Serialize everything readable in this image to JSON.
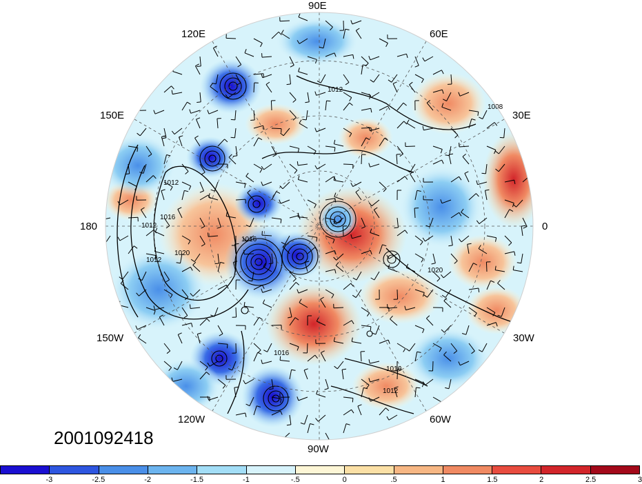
{
  "longitude_labels": [
    "90E",
    "60E",
    "30E",
    "0",
    "30W",
    "60W",
    "90W",
    "120W",
    "150W",
    "180",
    "150E",
    "120E"
  ],
  "isobar_labels": [
    "1008",
    "1012",
    "1016",
    "1020"
  ],
  "timestamp": "2001092418",
  "colorbar": {
    "ticks": [
      "-3",
      "-2.5",
      "-2",
      "-1.5",
      "-1",
      "-.5",
      "0",
      ".5",
      "1",
      "1.5",
      "2",
      "2.5",
      "3"
    ],
    "colors": [
      "#1a0fd1",
      "#2e56e0",
      "#4a8fe8",
      "#6cb4ef",
      "#a3def7",
      "#d7f3fb",
      "#fdf6d6",
      "#fbe0a6",
      "#f7b784",
      "#f08a63",
      "#e84c3f",
      "#d2252a",
      "#a3091a"
    ]
  }
}
